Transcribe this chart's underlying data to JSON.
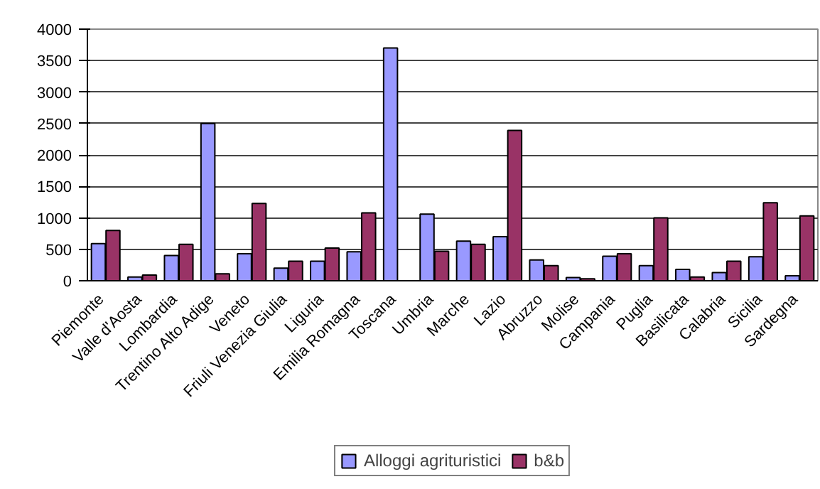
{
  "chart_data": {
    "type": "bar",
    "categories": [
      "Piemonte",
      "Valle d'Aosta",
      "Lombardia",
      "Trentino Alto Adige",
      "Veneto",
      "Friuli Venezia Giulia",
      "Liguria",
      "Emilia Romagna",
      "Toscana",
      "Umbria",
      "Marche",
      "Lazio",
      "Abruzzo",
      "Molise",
      "Campania",
      "Puglia",
      "Basilicata",
      "Calabria",
      "Sicilia",
      "Sardegna"
    ],
    "series": [
      {
        "name": "Alloggi agrituristici",
        "color": "#9999ff",
        "values": [
          590,
          60,
          400,
          2500,
          430,
          200,
          310,
          460,
          3700,
          1060,
          630,
          700,
          330,
          50,
          390,
          240,
          180,
          130,
          380,
          80
        ]
      },
      {
        "name": "b&b",
        "color": "#993366",
        "values": [
          800,
          90,
          580,
          110,
          1230,
          310,
          520,
          1080,
          0,
          470,
          580,
          2390,
          240,
          30,
          430,
          1000,
          60,
          310,
          1240,
          1030
        ]
      }
    ],
    "ylim": [
      0,
      4000
    ],
    "yticks": [
      0,
      500,
      1000,
      1500,
      2000,
      2500,
      3000,
      3500,
      4000
    ],
    "grid": "y",
    "legend": "bottom"
  }
}
